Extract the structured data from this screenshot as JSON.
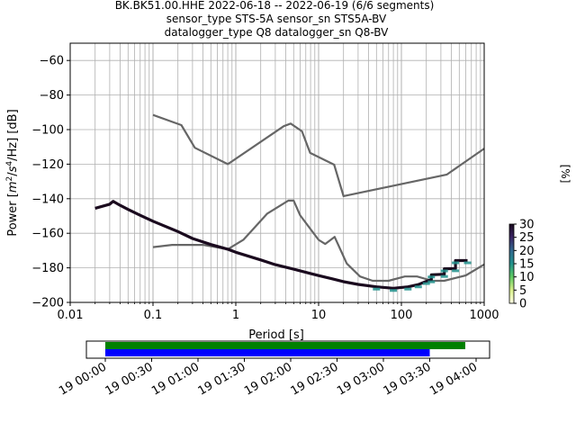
{
  "chart_data": [
    {
      "type": "line",
      "title": [
        "BK.BK51.00.HHE   2022-06-18 -- 2022-06-19  (6/6 segments)",
        "sensor_type STS-5A sensor_sn STS5A-BV",
        "datalogger_type Q8 datalogger_sn Q8-BV"
      ],
      "xlabel": "Period [s]",
      "ylabel_parts": {
        "prefix": "Power [",
        "m": "m",
        "m_exp": "2",
        "sep1": "/",
        "s": "s",
        "s_exp": "4",
        "suffix": "/Hz] [dB]"
      },
      "xscale": "log",
      "xlim": [
        0.01,
        1000
      ],
      "ylim": [
        -200,
        -50
      ],
      "xticks": [
        0.01,
        0.1,
        1,
        10,
        100,
        1000
      ],
      "xtick_labels": [
        "0.01",
        "0.1",
        "1",
        "10",
        "100",
        "1000"
      ],
      "yticks": [
        -200,
        -180,
        -160,
        -140,
        -120,
        -100,
        -80,
        -60
      ],
      "ytick_labels": [
        "−200",
        "−180",
        "−160",
        "−140",
        "−120",
        "−100",
        "−80",
        "−60"
      ],
      "grid": true,
      "series": [
        {
          "role": "noise-model-high",
          "color": "#666666",
          "points": [
            [
              0.1,
              -91.5
            ],
            [
              0.22,
              -97.4
            ],
            [
              0.32,
              -110.5
            ],
            [
              0.8,
              -120
            ],
            [
              3.8,
              -98
            ],
            [
              4.6,
              -96.5
            ],
            [
              6.3,
              -101
            ],
            [
              7.9,
              -113.5
            ],
            [
              15.4,
              -120.3
            ],
            [
              20,
              -138.5
            ],
            [
              354.8,
              -126
            ],
            [
              1000,
              -111
            ]
          ]
        },
        {
          "role": "noise-model-low",
          "color": "#666666",
          "points": [
            [
              0.1,
              -168
            ],
            [
              0.17,
              -166.7
            ],
            [
              0.4,
              -166.7
            ],
            [
              0.8,
              -169.2
            ],
            [
              1.24,
              -163.7
            ],
            [
              2.4,
              -148.6
            ],
            [
              4.3,
              -141.1
            ],
            [
              5.0,
              -141.1
            ],
            [
              6.0,
              -149.7
            ],
            [
              10,
              -163.8
            ],
            [
              12,
              -166.2
            ],
            [
              15.6,
              -162.1
            ],
            [
              21.9,
              -177.5
            ],
            [
              31.6,
              -185
            ],
            [
              45,
              -187.5
            ],
            [
              70,
              -187.5
            ],
            [
              110,
              -185
            ],
            [
              154.5,
              -185
            ],
            [
              234.5,
              -187.5
            ],
            [
              328.6,
              -187.5
            ],
            [
              600,
              -184.4
            ],
            [
              1000,
              -178
            ]
          ]
        },
        {
          "role": "psd-mode",
          "color": "#1a0a1e",
          "points": [
            [
              0.02,
              -145.5
            ],
            [
              0.03,
              -143.2
            ],
            [
              0.033,
              -141.5
            ],
            [
              0.04,
              -143.8
            ],
            [
              0.05,
              -146.2
            ],
            [
              0.07,
              -149.6
            ],
            [
              0.1,
              -153
            ],
            [
              0.2,
              -159
            ],
            [
              0.3,
              -163
            ],
            [
              0.5,
              -166.5
            ],
            [
              0.8,
              -169.2
            ],
            [
              1,
              -171
            ],
            [
              2,
              -175.4
            ],
            [
              3,
              -178.2
            ],
            [
              5,
              -180.8
            ],
            [
              8,
              -183.3
            ],
            [
              10,
              -184.5
            ],
            [
              15,
              -186.5
            ],
            [
              20,
              -188
            ],
            [
              30,
              -189.6
            ],
            [
              50,
              -191
            ],
            [
              80,
              -191.8
            ],
            [
              120,
              -191
            ],
            [
              160,
              -189.7
            ],
            [
              200,
              -187.8
            ],
            [
              230,
              -186.8
            ],
            [
              230,
              -184
            ],
            [
              330,
              -183.7
            ],
            [
              330,
              -180.5
            ],
            [
              450,
              -180.4
            ],
            [
              450,
              -175.8
            ],
            [
              630,
              -175.8
            ]
          ]
        }
      ],
      "colorbar": {
        "label": "[%]",
        "vmin": 0,
        "vmax": 30,
        "ticks": [
          0,
          5,
          10,
          15,
          20,
          25,
          30
        ],
        "tick_labels": [
          "0",
          "5",
          "10",
          "15",
          "20",
          "25",
          "30"
        ],
        "colormap": [
          "#ffffe5",
          "#d9ef8b",
          "#5ec962",
          "#21918c",
          "#31688e",
          "#3b2464",
          "#1a0a1e"
        ]
      }
    },
    {
      "type": "timeline",
      "xlabels": [
        "19 00:00",
        "19 00:30",
        "19 01:00",
        "19 01:30",
        "19 02:00",
        "19 02:30",
        "19 03:00",
        "19 03:30",
        "19 04:00"
      ],
      "bars": [
        {
          "color": "#008000",
          "start": "19 00:00",
          "end": "19 03:53"
        },
        {
          "color": "#0000ff",
          "start": "19 00:00",
          "end": "19 03:30"
        }
      ]
    }
  ]
}
